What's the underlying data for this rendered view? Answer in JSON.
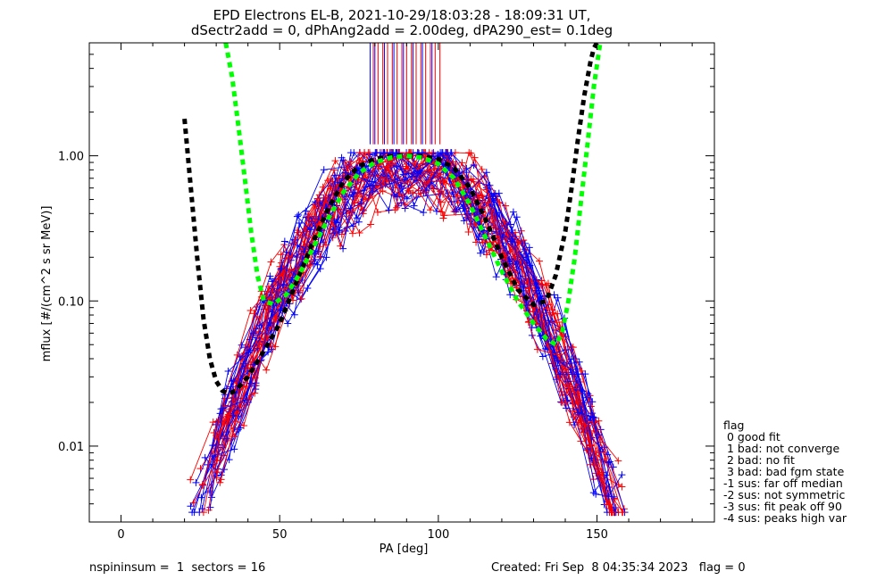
{
  "title_line1": "EPD Electrons EL-B, 2021-10-29/18:03:28 - 18:09:31 UT,",
  "title_line2": "dSectr2add = 0, dPhAng2add = 2.00deg, dPA290_est=   0.1deg",
  "footer_left": "nspininsum =  1  sectors = 16",
  "footer_right": "Created: Fri Sep  8 04:35:34 2023   flag = 0",
  "legend": {
    "title": "flag",
    "items": [
      " 0 good fit",
      " 1 bad: not converge",
      " 2 bad: no fit",
      " 3 bad: bad fgm state",
      "-1 sus: far off median",
      "-2 sus: not symmetric",
      "-3 sus: fit peak off 90",
      "-4 sus: peaks high var"
    ]
  },
  "colors": {
    "red": "#ff0000",
    "blue": "#0000ff",
    "black": "#000000",
    "green": "#00ff00",
    "axis": "#000000"
  },
  "chart_data": {
    "type": "line",
    "xlabel": "PA [deg]",
    "ylabel": "mflux [#/(cm^2 s sr MeV)]",
    "xlim": [
      -10,
      187
    ],
    "ylim": [
      0.003,
      6.0
    ],
    "yscale": "log",
    "xticks": [
      0,
      50,
      100,
      150
    ],
    "yticks": [
      0.01,
      0.1,
      1.0
    ],
    "ytick_labels": [
      "0.01",
      "0.10",
      "1.00"
    ],
    "red_vertical_lines_x": [
      79.5,
      81,
      82.5,
      84,
      85.5,
      87,
      88.5,
      90,
      91.5,
      93,
      94.5,
      96,
      97.5,
      99,
      100.5
    ],
    "blue_vertical_lines_x": [
      78.5,
      80,
      83,
      86,
      89,
      92,
      95,
      98
    ],
    "series": [
      {
        "color": "black",
        "style": "dashed-thick",
        "x": [
          20,
          22,
          24,
          26,
          28,
          30,
          32,
          34,
          36,
          40,
          45,
          50,
          55,
          60,
          65,
          70,
          75,
          80,
          85,
          90,
          95,
          100,
          105,
          110,
          115,
          120,
          125,
          130,
          134,
          137,
          140,
          142,
          144,
          146,
          148,
          149,
          150
        ],
        "y": [
          1.8,
          0.6,
          0.2,
          0.075,
          0.04,
          0.028,
          0.024,
          0.023,
          0.024,
          0.03,
          0.045,
          0.07,
          0.13,
          0.24,
          0.42,
          0.66,
          0.85,
          0.95,
          0.99,
          1.0,
          0.99,
          0.95,
          0.82,
          0.6,
          0.36,
          0.2,
          0.12,
          0.094,
          0.1,
          0.15,
          0.3,
          0.6,
          1.3,
          2.6,
          4.5,
          5.5,
          6.0
        ]
      },
      {
        "color": "green",
        "style": "dashed-thick",
        "x": [
          33,
          35,
          37,
          39,
          41,
          43,
          45,
          48,
          52,
          56,
          60,
          65,
          70,
          75,
          80,
          85,
          90,
          95,
          100,
          105,
          110,
          115,
          120,
          125,
          130,
          134,
          137,
          139,
          141,
          143,
          145,
          147,
          149,
          151
        ],
        "y": [
          6.0,
          3.5,
          1.6,
          0.7,
          0.3,
          0.15,
          0.1,
          0.095,
          0.11,
          0.15,
          0.22,
          0.36,
          0.56,
          0.76,
          0.9,
          0.97,
          1.0,
          0.97,
          0.88,
          0.7,
          0.46,
          0.27,
          0.16,
          0.1,
          0.07,
          0.055,
          0.05,
          0.06,
          0.1,
          0.2,
          0.5,
          1.2,
          3.0,
          6.0
        ]
      }
    ]
  }
}
